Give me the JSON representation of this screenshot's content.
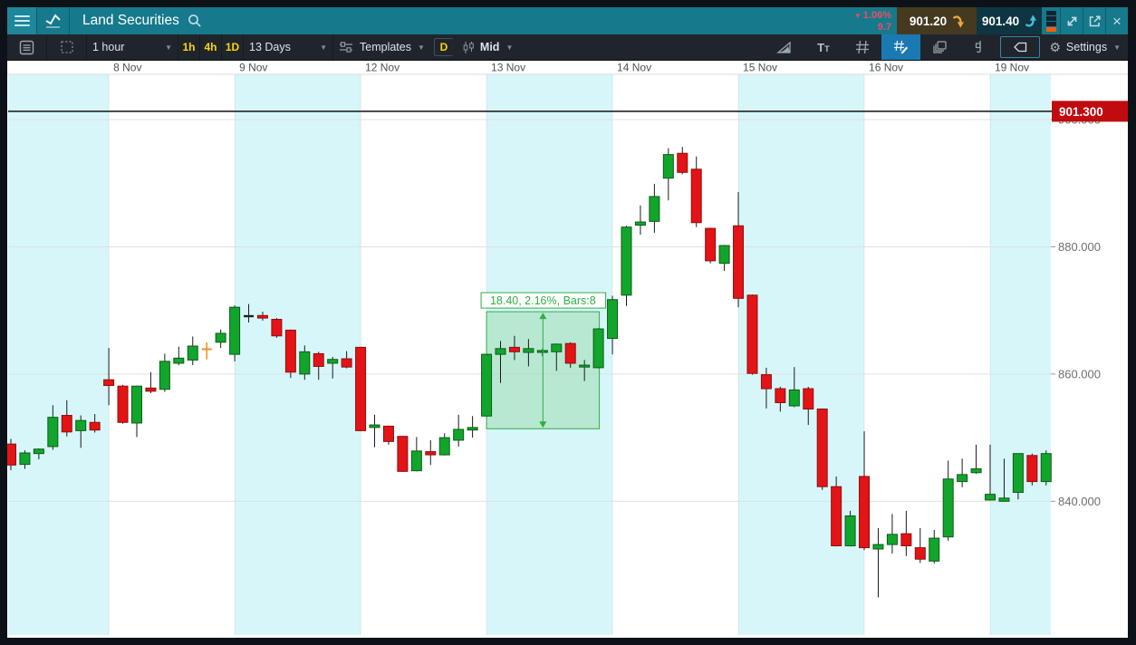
{
  "header": {
    "title": "Land Securities",
    "change": {
      "arrow": "▼",
      "pct": "1.06%",
      "abs": "9.7"
    },
    "sell_price": "901.20",
    "buy_price": "901.40"
  },
  "toolbar": {
    "interval_label": "1 hour",
    "interval_buttons": [
      "1h",
      "4h",
      "1D"
    ],
    "range_label": "13 Days",
    "templates_label": "Templates",
    "d_button": "D",
    "price_type_label": "Mid",
    "settings_label": "Settings"
  },
  "icons": {
    "titlebar": [
      "menu",
      "chart-line",
      "search",
      "sell-arrow-down",
      "buy-arrow-up",
      "layout-squares",
      "expand",
      "popout",
      "close"
    ],
    "toolbar": [
      "chart-list",
      "dashed-grid",
      "templates-sliders",
      "candle-style",
      "trend-draw",
      "text-tool",
      "grid",
      "grid-edit",
      "layers",
      "pin-tool",
      "eraser",
      "gear"
    ]
  },
  "colors": {
    "titlebar_teal": "#16798c",
    "change_red": "#e75064",
    "sell_bg": "#453a20",
    "buy_bg": "#0e3642",
    "sell_arrow": "#eaa83e",
    "buy_arrow": "#43c0d8",
    "toolbar_yellow": "#fed501",
    "active_blue": "#1b79b2",
    "candle_green": "#12a52c",
    "candle_red": "#e41315",
    "doji_orange": "#ef8f1c",
    "session_cyan": "#d7f6fa",
    "price_tag_red": "#c10b0e",
    "measure_green": "#33ad47"
  },
  "chart_data": {
    "type": "candlestick",
    "instrument": "Land Securities",
    "interval": "1 hour",
    "range": "13 Days",
    "price_type": "Mid",
    "y_axis": {
      "tick_values": [
        900,
        880,
        860,
        840
      ],
      "tick_labels": [
        "900.000",
        "880.000",
        "860.000",
        "840.000"
      ],
      "current_price": 901.3,
      "current_price_label": "901.300"
    },
    "sessions": [
      {
        "label": "8 Nov",
        "start": 7
      },
      {
        "label": "9 Nov",
        "start": 16
      },
      {
        "label": "12 Nov",
        "start": 25
      },
      {
        "label": "13 Nov",
        "start": 34
      },
      {
        "label": "14 Nov",
        "start": 43
      },
      {
        "label": "15 Nov",
        "start": 52
      },
      {
        "label": "16 Nov",
        "start": 61
      },
      {
        "label": "19 Nov",
        "start": 70
      }
    ],
    "candles": [
      [
        849.0,
        849.8,
        844.9,
        845.7
      ],
      [
        845.8,
        848.0,
        845.1,
        847.6
      ],
      [
        847.5,
        848.3,
        846.6,
        848.2
      ],
      [
        848.6,
        855.1,
        848.1,
        853.2
      ],
      [
        853.5,
        855.9,
        850.2,
        850.9
      ],
      [
        851.1,
        853.5,
        848.4,
        852.7
      ],
      [
        852.4,
        853.7,
        850.8,
        851.2
      ],
      [
        859.1,
        864.1,
        855.1,
        858.2
      ],
      [
        858.1,
        858.3,
        852.2,
        852.4
      ],
      [
        852.3,
        858.2,
        850.1,
        858.1
      ],
      [
        857.8,
        860.3,
        857.0,
        857.3
      ],
      [
        857.6,
        863.2,
        857.2,
        862.0
      ],
      [
        861.7,
        864.3,
        861.4,
        862.5
      ],
      [
        862.2,
        865.9,
        861.4,
        864.4
      ],
      [
        863.9,
        865.0,
        862.3,
        863.9
      ],
      [
        865.0,
        867.0,
        864.1,
        866.4
      ],
      [
        863.1,
        870.8,
        862.0,
        870.5
      ],
      [
        869.1,
        871.0,
        868.1,
        869.1
      ],
      [
        869.2,
        869.8,
        868.4,
        868.8
      ],
      [
        868.6,
        868.8,
        865.7,
        866.0
      ],
      [
        866.9,
        867.0,
        859.4,
        860.3
      ],
      [
        860.0,
        864.5,
        859.1,
        863.5
      ],
      [
        863.2,
        863.5,
        859.1,
        861.2
      ],
      [
        861.7,
        862.7,
        859.3,
        862.3
      ],
      [
        862.4,
        863.6,
        860.9,
        861.1
      ],
      [
        864.2,
        864.3,
        851.0,
        851.1
      ],
      [
        851.6,
        853.6,
        848.5,
        852.0
      ],
      [
        851.8,
        851.9,
        848.9,
        849.4
      ],
      [
        850.2,
        850.3,
        844.6,
        844.7
      ],
      [
        844.8,
        850.1,
        844.7,
        847.9
      ],
      [
        847.8,
        849.6,
        845.7,
        847.3
      ],
      [
        847.3,
        850.7,
        847.2,
        850.0
      ],
      [
        849.6,
        853.6,
        848.6,
        851.3
      ],
      [
        851.2,
        853.4,
        850.0,
        851.6
      ],
      [
        853.4,
        863.2,
        853.3,
        863.1
      ],
      [
        863.1,
        865.2,
        858.6,
        864.0
      ],
      [
        864.2,
        866.0,
        862.2,
        863.5
      ],
      [
        863.4,
        865.5,
        861.2,
        864.0
      ],
      [
        863.4,
        864.0,
        862.8,
        863.7
      ],
      [
        863.5,
        864.8,
        860.5,
        864.7
      ],
      [
        864.8,
        865.0,
        861.0,
        861.7
      ],
      [
        861.1,
        862.2,
        858.9,
        861.4
      ],
      [
        861.0,
        867.2,
        860.9,
        867.1
      ],
      [
        865.6,
        872.3,
        863.1,
        871.7
      ],
      [
        872.4,
        883.3,
        870.7,
        883.1
      ],
      [
        883.4,
        886.5,
        881.9,
        883.9
      ],
      [
        884.0,
        889.9,
        882.2,
        887.9
      ],
      [
        890.8,
        895.5,
        887.3,
        894.5
      ],
      [
        894.7,
        895.7,
        891.4,
        891.7
      ],
      [
        892.2,
        894.2,
        883.1,
        883.8
      ],
      [
        882.9,
        883.0,
        877.4,
        877.8
      ],
      [
        877.4,
        880.3,
        876.2,
        880.2
      ],
      [
        883.3,
        888.6,
        870.5,
        871.9
      ],
      [
        872.4,
        872.5,
        859.9,
        860.1
      ],
      [
        859.9,
        861.0,
        854.6,
        857.7
      ],
      [
        857.7,
        858.0,
        854.1,
        855.5
      ],
      [
        855.0,
        861.1,
        854.8,
        857.5
      ],
      [
        857.7,
        858.0,
        852.0,
        854.5
      ],
      [
        854.5,
        854.6,
        841.8,
        842.3
      ],
      [
        842.3,
        843.9,
        832.9,
        833.0
      ],
      [
        833.0,
        838.5,
        832.9,
        837.7
      ],
      [
        843.9,
        851.0,
        832.3,
        832.7
      ],
      [
        832.5,
        835.8,
        824.9,
        833.2
      ],
      [
        833.2,
        838.0,
        831.8,
        834.8
      ],
      [
        834.9,
        838.5,
        831.4,
        833.0
      ],
      [
        832.7,
        835.8,
        830.3,
        830.9
      ],
      [
        830.6,
        835.5,
        830.2,
        834.2
      ],
      [
        834.4,
        846.4,
        833.8,
        843.5
      ],
      [
        843.1,
        846.7,
        842.2,
        844.2
      ],
      [
        844.5,
        848.9,
        844.3,
        845.1
      ],
      [
        840.2,
        848.9,
        840.1,
        841.1
      ],
      [
        840.0,
        846.7,
        840.0,
        840.5
      ],
      [
        841.4,
        847.5,
        840.3,
        847.5
      ],
      [
        847.2,
        847.5,
        842.5,
        843.1
      ],
      [
        843.1,
        848.0,
        842.5,
        847.5
      ]
    ],
    "special_candles": {
      "14": "orange-doji",
      "17": "flat-doji"
    },
    "measurement": {
      "label": "18.40, 2.16%, Bars:8",
      "from_index": 34,
      "to_index": 42,
      "price_top": 869.8,
      "price_bottom": 851.4
    },
    "layout_hints": {
      "grid": true,
      "alternating_session_bands": true,
      "y_range_approx": [
        822,
        905
      ],
      "date_axis_position": "top",
      "price_axis_position": "right"
    }
  }
}
